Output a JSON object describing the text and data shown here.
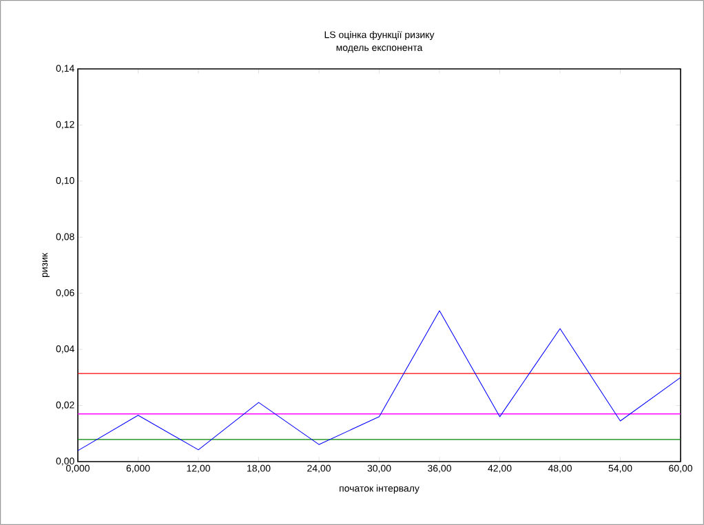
{
  "chart_data": {
    "type": "line",
    "title": "LS оцінка функції ризику",
    "subtitle": "модель експонента",
    "xlabel": "початок інтервалу",
    "ylabel": "ризик",
    "x": [
      0,
      6,
      12,
      18,
      24,
      30,
      36,
      42,
      48,
      54,
      60
    ],
    "series": [
      {
        "color": "#0000ff",
        "values": [
          0.0039,
          0.0165,
          0.0042,
          0.0211,
          0.0061,
          0.016,
          0.0538,
          0.016,
          0.0474,
          0.0145,
          0.03
        ]
      }
    ],
    "xlim": [
      0,
      60
    ],
    "xticks": [
      {
        "value": 0,
        "label": "0,000"
      },
      {
        "value": 6,
        "label": "6,000"
      },
      {
        "value": 12,
        "label": "12,00"
      },
      {
        "value": 18,
        "label": "18,00"
      },
      {
        "value": 24,
        "label": "24,00"
      },
      {
        "value": 30,
        "label": "30,00"
      },
      {
        "value": 36,
        "label": "36,00"
      },
      {
        "value": 42,
        "label": "42,00"
      },
      {
        "value": 48,
        "label": "48,00"
      },
      {
        "value": 54,
        "label": "54,00"
      },
      {
        "value": 60,
        "label": "60,00"
      }
    ],
    "ylim": [
      0,
      0.14
    ],
    "yticks": [
      {
        "value": 0,
        "label": "0,00"
      },
      {
        "value": 0.02,
        "label": "0,02"
      },
      {
        "value": 0.04,
        "label": "0,04"
      },
      {
        "value": 0.06,
        "label": "0,06"
      },
      {
        "value": 0.08,
        "label": "0,08"
      },
      {
        "value": 0.1,
        "label": "0,10"
      },
      {
        "value": 0.12,
        "label": "0,12"
      },
      {
        "value": 0.14,
        "label": "0,14"
      }
    ],
    "ref_lines": [
      {
        "axis": "y",
        "value": 0.0314,
        "color": "#ff0000"
      },
      {
        "axis": "y",
        "value": 0.017,
        "color": "#ff00ff"
      },
      {
        "axis": "y",
        "value": 0.0079,
        "color": "#008000"
      }
    ],
    "grid": false,
    "marker": "none",
    "line_style": "solid"
  }
}
